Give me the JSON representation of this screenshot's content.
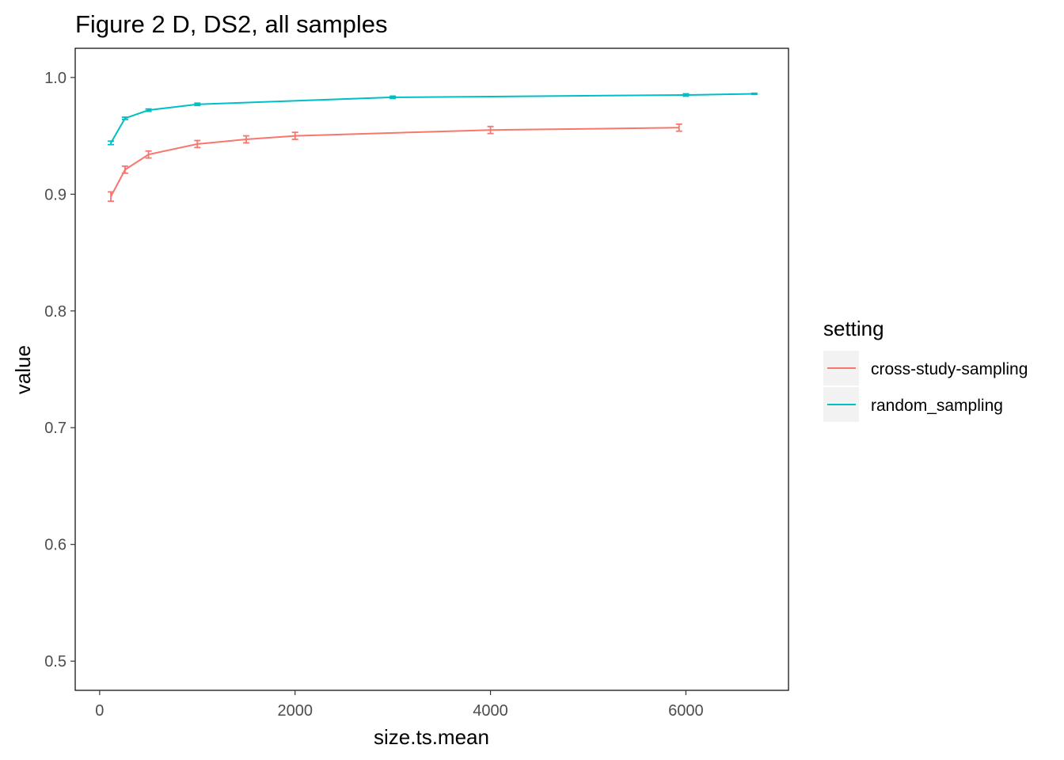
{
  "chart_data": {
    "type": "line",
    "title": "Figure 2 D, DS2, all samples",
    "xlabel": "size.ts.mean",
    "ylabel": "value",
    "xlim": [
      -250,
      7050
    ],
    "ylim": [
      0.475,
      1.025
    ],
    "x_ticks": [
      0,
      2000,
      4000,
      6000
    ],
    "x_tick_labels": [
      "0",
      "2000",
      "4000",
      "6000"
    ],
    "y_ticks": [
      0.5,
      0.6,
      0.7,
      0.8,
      0.9,
      1.0
    ],
    "y_tick_labels": [
      "0.5",
      "0.6",
      "0.7",
      "0.8",
      "0.9",
      "1.0"
    ],
    "grid": false,
    "legend": {
      "title": "setting",
      "position": "right"
    },
    "series": [
      {
        "name": "cross-study-sampling",
        "color": "#F8766D",
        "x": [
          115,
          260,
          500,
          1000,
          1500,
          2000,
          4000,
          5930
        ],
        "y": [
          0.898,
          0.921,
          0.934,
          0.943,
          0.947,
          0.95,
          0.955,
          0.957
        ],
        "err": [
          0.004,
          0.003,
          0.003,
          0.003,
          0.003,
          0.003,
          0.003,
          0.003
        ]
      },
      {
        "name": "random_sampling",
        "color": "#00BFC4",
        "x": [
          115,
          260,
          500,
          1000,
          3000,
          6000,
          6700
        ],
        "y": [
          0.944,
          0.965,
          0.972,
          0.977,
          0.983,
          0.985,
          0.986
        ],
        "err": [
          0.0015,
          0.001,
          0.001,
          0.001,
          0.001,
          0.001,
          0.0005
        ]
      }
    ]
  }
}
